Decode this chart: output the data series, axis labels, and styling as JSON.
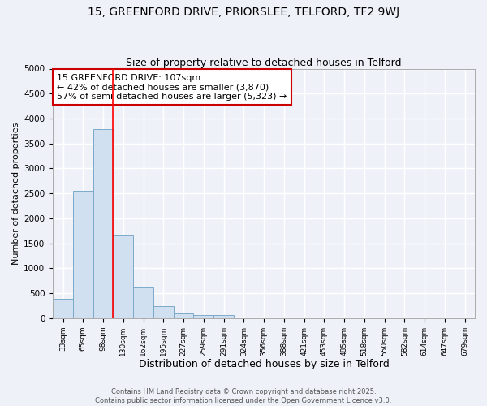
{
  "title1": "15, GREENFORD DRIVE, PRIORSLEE, TELFORD, TF2 9WJ",
  "title2": "Size of property relative to detached houses in Telford",
  "xlabel": "Distribution of detached houses by size in Telford",
  "ylabel": "Number of detached properties",
  "footer1": "Contains HM Land Registry data © Crown copyright and database right 2025.",
  "footer2": "Contains public sector information licensed under the Open Government Licence v3.0.",
  "categories": [
    "33sqm",
    "65sqm",
    "98sqm",
    "130sqm",
    "162sqm",
    "195sqm",
    "227sqm",
    "259sqm",
    "291sqm",
    "324sqm",
    "356sqm",
    "388sqm",
    "421sqm",
    "453sqm",
    "485sqm",
    "518sqm",
    "550sqm",
    "582sqm",
    "614sqm",
    "647sqm",
    "679sqm"
  ],
  "values": [
    380,
    2550,
    3780,
    1650,
    620,
    240,
    100,
    55,
    55,
    0,
    0,
    0,
    0,
    0,
    0,
    0,
    0,
    0,
    0,
    0,
    0
  ],
  "bar_color": "#d0e0f0",
  "bar_edgecolor": "#7aaac8",
  "red_line_x": 2.5,
  "annotation_line1": "15 GREENFORD DRIVE: 107sqm",
  "annotation_line2": "← 42% of detached houses are smaller (3,870)",
  "annotation_line3": "57% of semi-detached houses are larger (5,323) →",
  "annotation_box_color": "#ffffff",
  "annotation_box_edgecolor": "#cc0000",
  "ylim": [
    0,
    5000
  ],
  "yticks": [
    0,
    500,
    1000,
    1500,
    2000,
    2500,
    3000,
    3500,
    4000,
    4500,
    5000
  ],
  "background_color": "#eef2f8",
  "grid_color": "#ffffff",
  "title1_fontsize": 10,
  "title2_fontsize": 9
}
